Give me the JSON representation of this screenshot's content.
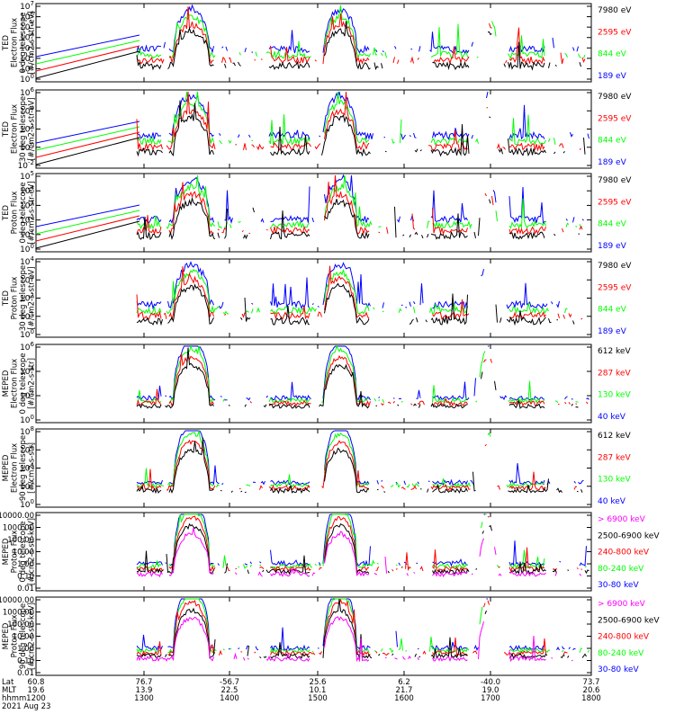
{
  "colors": {
    "black": "#000000",
    "red": "#ff0000",
    "green": "#00ff00",
    "blue": "#0000ff",
    "magenta": "#ff00ff"
  },
  "chart_data": {
    "type": "line",
    "x_axis": {
      "rows": [
        {
          "label": "Lat",
          "ticks": [
            "60.8",
            "76.7",
            "-56.7",
            "25.6",
            "6.2",
            "-40.0",
            "73.7"
          ]
        },
        {
          "label": "MLT",
          "ticks": [
            "19.6",
            "13.9",
            "22.5",
            "10.1",
            "21.7",
            "19.0",
            "20.6"
          ]
        },
        {
          "label": "hhmm",
          "ticks": [
            "1200",
            "1300",
            "1400",
            "1500",
            "1600",
            "1700",
            "1800"
          ]
        }
      ],
      "date": "2021 Aug 23"
    },
    "panels": [
      {
        "ylabel": [
          "TED",
          "Electron Flux",
          "0 deg telescope",
          "[#/cm2-s-str-eV]"
        ],
        "yticks": [
          "10^7",
          "10^6",
          "10^5",
          "10^4",
          "10^3",
          "10^2",
          "10^1",
          "10^0"
        ],
        "legend": [
          {
            "text": "7980 eV",
            "color": "black"
          },
          {
            "text": "2595 eV",
            "color": "red"
          },
          {
            "text": "844 eV",
            "color": "green"
          },
          {
            "text": "189 eV",
            "color": "blue"
          }
        ]
      },
      {
        "ylabel": [
          "TED",
          "Electron Flux",
          "30 deg telescope",
          "[#/cm2-s-str-eV]"
        ],
        "yticks": [
          "10^6",
          "10^4",
          "10^2",
          "10^0",
          "10^-2"
        ],
        "legend": [
          {
            "text": "7980 eV",
            "color": "black"
          },
          {
            "text": "2595 eV",
            "color": "red"
          },
          {
            "text": "844 eV",
            "color": "green"
          },
          {
            "text": "189 eV",
            "color": "blue"
          }
        ]
      },
      {
        "ylabel": [
          "TED",
          "Proton Flux",
          "0 deg telescope",
          "[#/cm2-s-str-eV]"
        ],
        "yticks": [
          "10^5",
          "10^4",
          "10^3",
          "10^2",
          "10^1",
          "10^0"
        ],
        "legend": [
          {
            "text": "7980 eV",
            "color": "black"
          },
          {
            "text": "2595 eV",
            "color": "red"
          },
          {
            "text": "844 eV",
            "color": "green"
          },
          {
            "text": "189 eV",
            "color": "blue"
          }
        ]
      },
      {
        "ylabel": [
          "TED",
          "Proton Flux",
          "30 deg telescope",
          "[#/cm2-s-str-eV]"
        ],
        "yticks": [
          "10^4",
          "10^3",
          "10^2",
          "10^1",
          "10^0"
        ],
        "legend": [
          {
            "text": "7980 eV",
            "color": "black"
          },
          {
            "text": "2595 eV",
            "color": "red"
          },
          {
            "text": "844 eV",
            "color": "green"
          },
          {
            "text": "189 eV",
            "color": "blue"
          }
        ]
      },
      {
        "ylabel": [
          "MEPED",
          "Electron Flux",
          "0 deg telescope",
          "[#/cm2-s-str]"
        ],
        "yticks": [
          "10^6",
          "10^4",
          "10^2",
          "10^0"
        ],
        "legend": [
          {
            "text": "612 keV",
            "color": "black"
          },
          {
            "text": "287 keV",
            "color": "red"
          },
          {
            "text": "130 keV",
            "color": "green"
          },
          {
            "text": "40 keV",
            "color": "blue"
          }
        ]
      },
      {
        "ylabel": [
          "MEPED",
          "Electron Flux",
          "90 deg telescope",
          "[#/cm2-s-str]"
        ],
        "yticks": [
          "10^8",
          "10^6",
          "10^4",
          "10^2",
          "10^0"
        ],
        "legend": [
          {
            "text": "612 keV",
            "color": "black"
          },
          {
            "text": "287 keV",
            "color": "red"
          },
          {
            "text": "130 keV",
            "color": "green"
          },
          {
            "text": "40 keV",
            "color": "blue"
          }
        ]
      },
      {
        "ylabel": [
          "MEPED",
          "Proton Flux",
          "0 deg telescope",
          "[#/cm2-s-str-keV]"
        ],
        "yticks": [
          "10000.00",
          "1000.00",
          "100.00",
          "10.00",
          "1.00",
          "0.10",
          "0.01"
        ],
        "legend": [
          {
            "text": "> 6900 keV",
            "color": "magenta"
          },
          {
            "text": "2500-6900 keV",
            "color": "black"
          },
          {
            "text": "240-800 keV",
            "color": "red"
          },
          {
            "text": "80-240 keV",
            "color": "green"
          },
          {
            "text": "30-80 keV",
            "color": "blue"
          }
        ]
      },
      {
        "ylabel": [
          "MEPED",
          "Proton Flux",
          "90 deg telescope",
          "[#/cm2-s-str-keV]"
        ],
        "yticks": [
          "10000.00",
          "1000.00",
          "100.00",
          "10.00",
          "1.00",
          "0.10",
          "0.01"
        ],
        "legend": [
          {
            "text": "> 6900 keV",
            "color": "magenta"
          },
          {
            "text": "2500-6900 keV",
            "color": "black"
          },
          {
            "text": "240-800 keV",
            "color": "red"
          },
          {
            "text": "80-240 keV",
            "color": "green"
          },
          {
            "text": "30-80 keV",
            "color": "blue"
          }
        ]
      }
    ]
  }
}
